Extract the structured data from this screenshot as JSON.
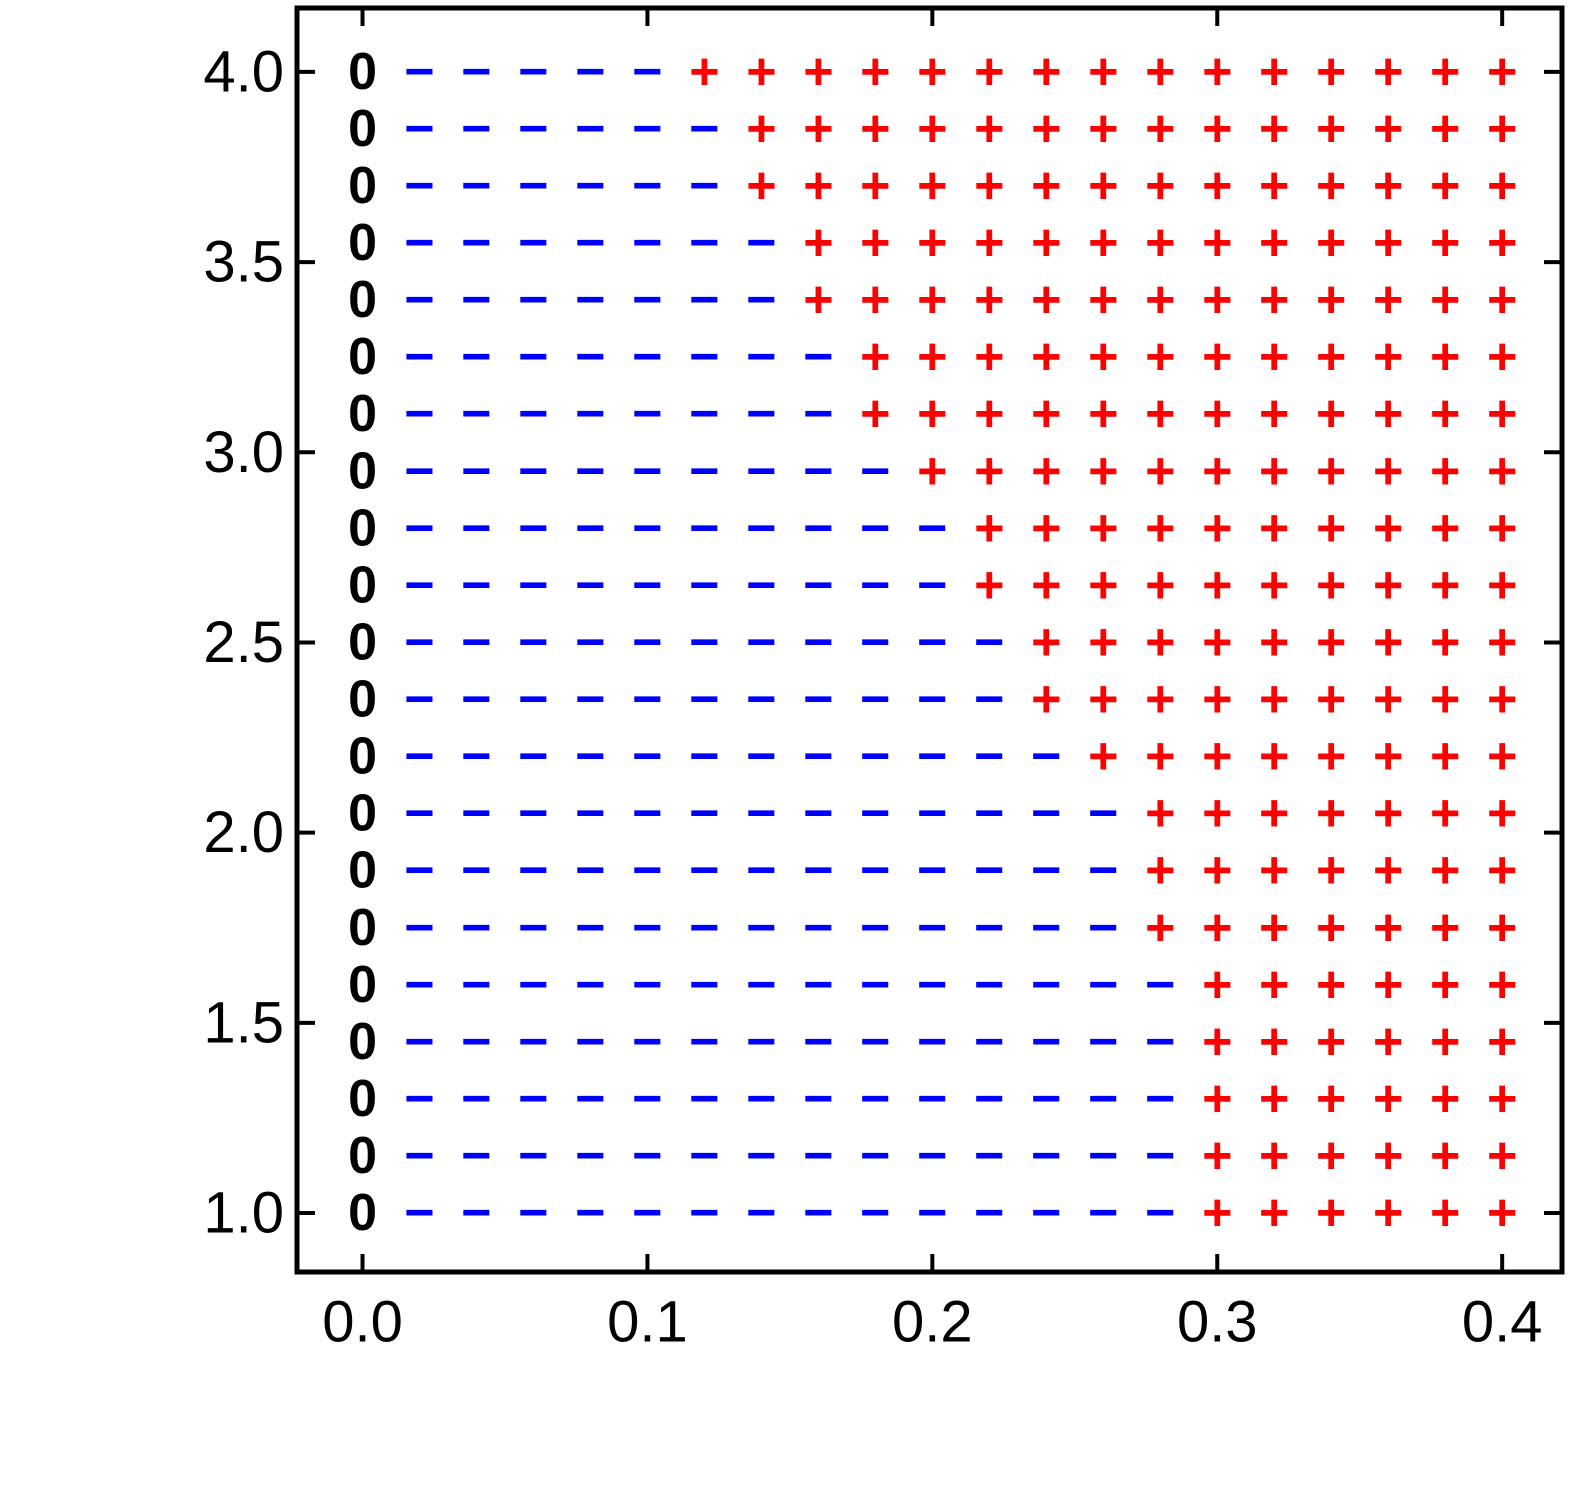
{
  "chart_data": {
    "type": "sign-grid",
    "x": [
      0,
      0.02,
      0.04,
      0.06,
      0.08,
      0.1,
      0.12,
      0.14,
      0.16,
      0.18,
      0.2,
      0.22,
      0.24,
      0.26,
      0.28,
      0.3,
      0.32,
      0.34,
      0.36,
      0.38,
      0.4
    ],
    "y": [
      1.0,
      1.15,
      1.3,
      1.45,
      1.6,
      1.75,
      1.9,
      2.05,
      2.2,
      2.35,
      2.5,
      2.65,
      2.8,
      2.95,
      3.1,
      3.25,
      3.4,
      3.55,
      3.7,
      3.85,
      4.0
    ],
    "grid": [
      "0−−−−−−−−−−−−−−++++++",
      "0−−−−−−−−−−−−−−++++++",
      "0−−−−−−−−−−−−−−++++++",
      "0−−−−−−−−−−−−−−++++++",
      "0−−−−−−−−−−−−−−++++++",
      "0−−−−−−−−−−−−−+++++++",
      "0−−−−−−−−−−−−−+++++++",
      "0−−−−−−−−−−−−−+++++++",
      "0−−−−−−−−−−−−++++++++",
      "0−−−−−−−−−−−+++++++++",
      "0−−−−−−−−−−−+++++++++",
      "0−−−−−−−−−−++++++++++",
      "0−−−−−−−−−−++++++++++",
      "0−−−−−−−−−+++++++++++",
      "0−−−−−−−−++++++++++++",
      "0−−−−−−−−++++++++++++",
      "0−−−−−−−+++++++++++++",
      "0−−−−−−−+++++++++++++",
      "0−−−−−−++++++++++++++",
      "0−−−−−−++++++++++++++",
      "0−−−−−+++++++++++++++"
    ],
    "colors": {
      "0": "#000000",
      "−": "#0000ff",
      "+": "#ff0000"
    },
    "xlim": [
      -0.023,
      0.421
    ],
    "ylim": [
      0.845,
      4.168
    ],
    "xticks": [
      {
        "value": 0,
        "label": "0.0"
      },
      0.1,
      0.2,
      0.3,
      0.4
    ],
    "yticks": [
      {
        "value": 1,
        "label": "1.0"
      },
      1.5,
      {
        "value": 2,
        "label": "2.0"
      },
      2.5,
      {
        "value": 3,
        "label": "3.0"
      },
      3.5,
      {
        "value": 4,
        "label": "4.0"
      }
    ]
  }
}
